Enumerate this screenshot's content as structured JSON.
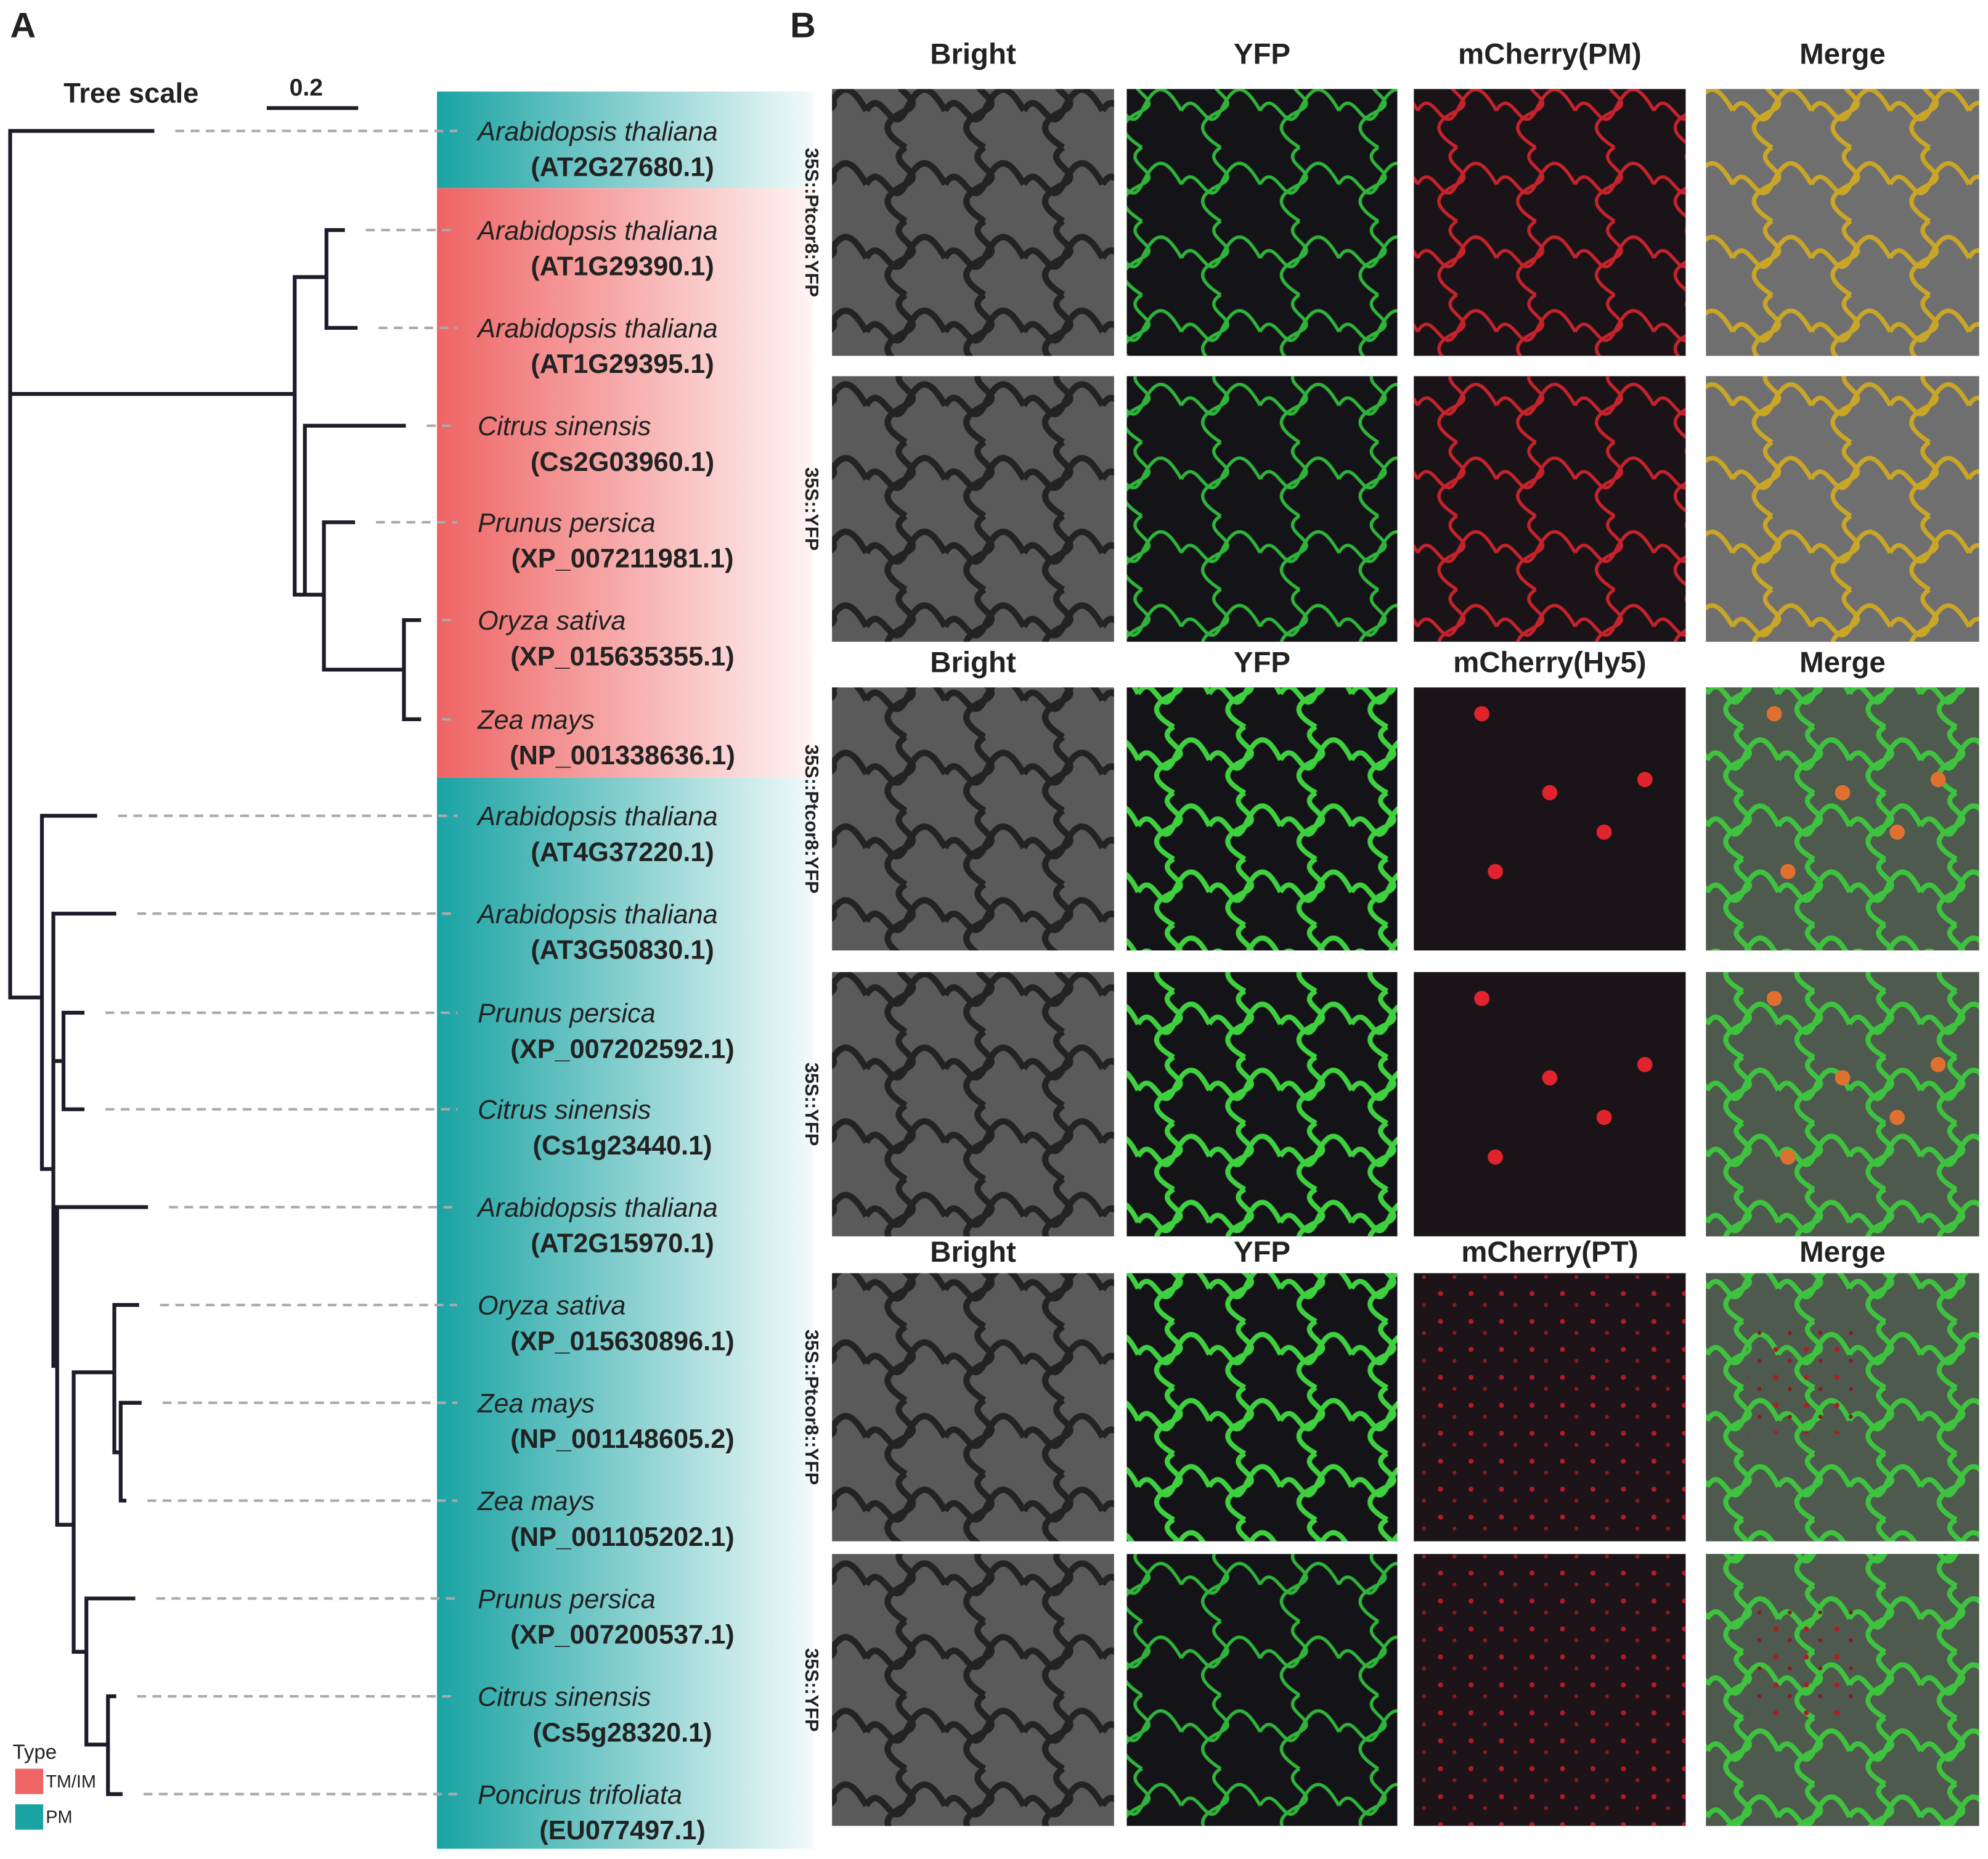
{
  "panel_a": {
    "label": "A",
    "tree_scale": {
      "title": "Tree scale",
      "value": "0.2"
    },
    "leaves": [
      {
        "species": "Arabidopsis thaliana",
        "id": "(AT2G27680.1)"
      },
      {
        "species": "Arabidopsis thaliana",
        "id": "(AT1G29390.1)"
      },
      {
        "species": "Arabidopsis thaliana",
        "id": "(AT1G29395.1)"
      },
      {
        "species": "Citrus  sinensis",
        "id": "(Cs2G03960.1)"
      },
      {
        "species": "Prunus  persica",
        "id": "(XP_007211981.1)"
      },
      {
        "species": "Oryza  sativa",
        "id": "(XP_015635355.1)"
      },
      {
        "species": "Zea  mays",
        "id": "(NP_001338636.1)"
      },
      {
        "species": "Arabidopsis thaliana",
        "id": "(AT4G37220.1)"
      },
      {
        "species": "Arabidopsis thaliana",
        "id": "(AT3G50830.1)"
      },
      {
        "species": "Prunus  persica",
        "id": "(XP_007202592.1)"
      },
      {
        "species": "Citrus  sinensis",
        "id": "(Cs1g23440.1)"
      },
      {
        "species": "Arabidopsis thaliana",
        "id": "(AT2G15970.1)"
      },
      {
        "species": "Oryza  sativa",
        "id": "(XP_015630896.1)"
      },
      {
        "species": "Zea  mays",
        "id": "(NP_001148605.2)"
      },
      {
        "species": "Zea  mays",
        "id": "(NP_001105202.1)"
      },
      {
        "species": "Prunus  persica",
        "id": "(XP_007200537.1)"
      },
      {
        "species": "Citrus  sinensis",
        "id": "(Cs5g28320.1)"
      },
      {
        "species": "Poncirus  trifoliata",
        "id": "(EU077497.1)"
      }
    ],
    "legend": {
      "title": "Type",
      "items": [
        "TM/IM",
        "PM"
      ]
    }
  },
  "panel_b": {
    "label": "B",
    "groups": [
      {
        "headers": [
          "Bright",
          "YFP",
          "mCherry(PM)",
          "Merge"
        ],
        "rows": [
          "35S::Ptcor8:YFP",
          "35S::YFP"
        ]
      },
      {
        "headers": [
          "Bright",
          "YFP",
          "mCherry(Hy5)",
          "Merge"
        ],
        "rows": [
          "35S::Ptcor8:YFP",
          "35S::YFP"
        ]
      },
      {
        "headers": [
          "Bright",
          "YFP",
          "mCherry(PT)",
          "Merge"
        ],
        "rows": [
          "35S::Ptcor8::YFP",
          "35S::YFP"
        ]
      }
    ]
  }
}
